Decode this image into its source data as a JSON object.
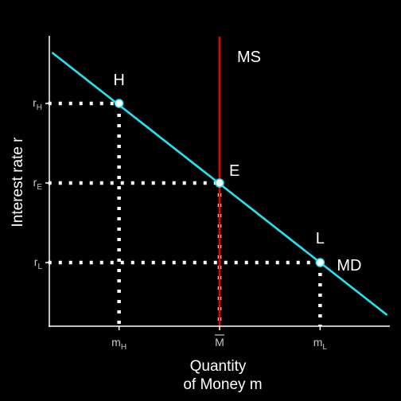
{
  "chart_data": {
    "type": "line",
    "title": "",
    "xlabel": [
      "Quantity",
      "of Money m"
    ],
    "ylabel": "Interest rate r",
    "xlim": [
      0,
      10
    ],
    "ylim": [
      0,
      10
    ],
    "x_ticks": [
      {
        "value": 2.3,
        "base": "m",
        "sub": "H",
        "overline": false
      },
      {
        "value": 5,
        "base": "M",
        "sub": "",
        "overline": true
      },
      {
        "value": 7.7,
        "base": "m",
        "sub": "L",
        "overline": false
      }
    ],
    "y_ticks": [
      {
        "value": 7.0,
        "base": "r",
        "sub": "H"
      },
      {
        "value": 4.5,
        "base": "r",
        "sub": "E"
      },
      {
        "value": 2.0,
        "base": "r",
        "sub": "L"
      }
    ],
    "series": [
      {
        "name": "MD",
        "color": "#22e5ef",
        "x": [
          0.5,
          9.5
        ],
        "y": [
          8.6,
          0.35
        ]
      },
      {
        "name": "MS",
        "color": "#e60000",
        "x": [
          5,
          5
        ],
        "y": [
          0,
          9.1
        ]
      }
    ],
    "points": [
      {
        "label": "H",
        "x": 2.3,
        "y": 7.0
      },
      {
        "label": "E",
        "x": 5,
        "y": 4.5
      },
      {
        "label": "L",
        "x": 7.7,
        "y": 2.0
      }
    ],
    "guides": [
      {
        "x": [
          0.4,
          2.3
        ],
        "y": [
          7.0,
          7.0
        ]
      },
      {
        "x": [
          2.3,
          2.3
        ],
        "y": [
          7.0,
          0
        ]
      },
      {
        "x": [
          0.4,
          5
        ],
        "y": [
          4.5,
          4.5
        ]
      },
      {
        "x": [
          5,
          5
        ],
        "y": [
          4.5,
          0
        ]
      },
      {
        "x": [
          0.4,
          7.7
        ],
        "y": [
          2.0,
          2.0
        ]
      },
      {
        "x": [
          7.7,
          7.7
        ],
        "y": [
          2.0,
          0
        ]
      }
    ],
    "grid": false,
    "legend": "none"
  }
}
